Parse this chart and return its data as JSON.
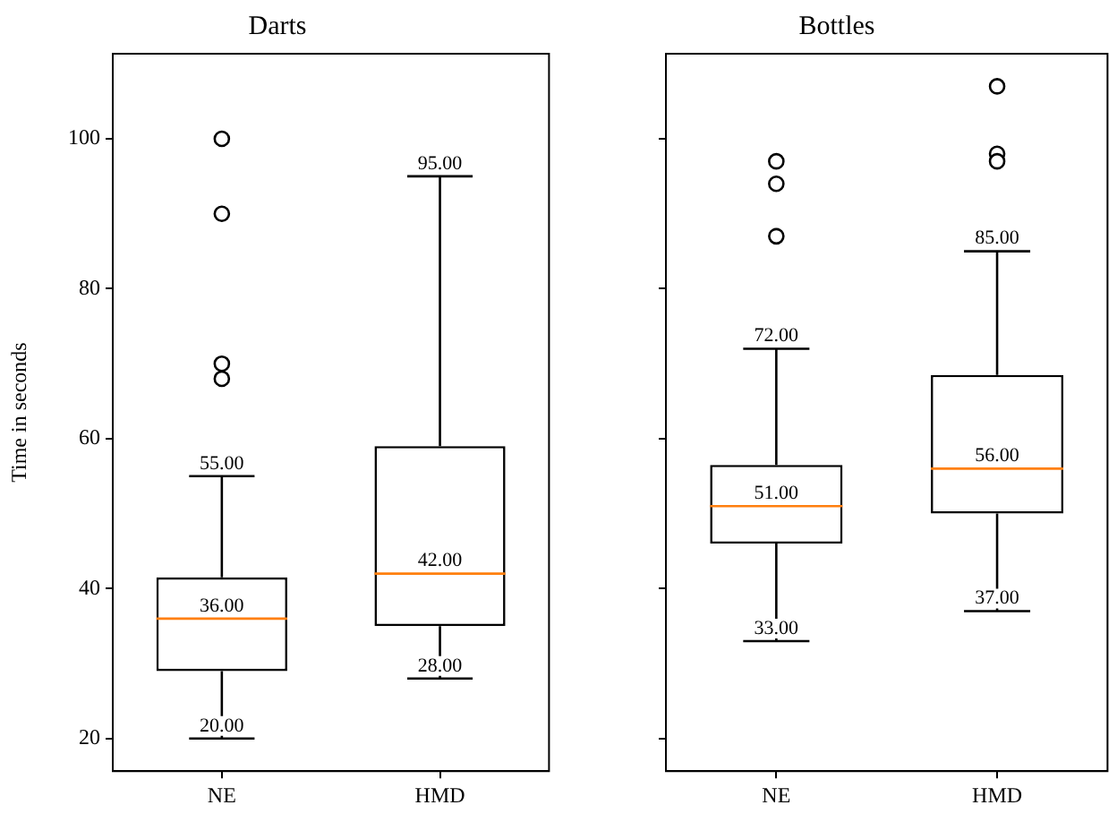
{
  "chart_data": [
    {
      "type": "box",
      "title": "Darts",
      "ylabel": "Time in seconds",
      "categories": [
        "NE",
        "HMD"
      ],
      "boxes": [
        {
          "low": 20,
          "q1": 29,
          "median": 36,
          "q3": 41.5,
          "high": 55,
          "outliers": [
            100,
            90,
            70,
            68
          ]
        },
        {
          "low": 28,
          "q1": 35,
          "median": 42,
          "q3": 59,
          "high": 95
        }
      ],
      "value_labels": [
        [
          "20.00",
          "36.00",
          "55.00"
        ],
        [
          "28.00",
          "42.00",
          "95.00"
        ]
      ],
      "ylim": [
        15.65,
        111.35
      ],
      "yticks": [
        20,
        40,
        60,
        80,
        100
      ],
      "grid": false
    },
    {
      "type": "box",
      "title": "Bottles",
      "categories": [
        "NE",
        "HMD"
      ],
      "boxes": [
        {
          "low": 33,
          "q1": 46,
          "median": 51,
          "q3": 56.5,
          "high": 72,
          "outliers": [
            97,
            94,
            87
          ]
        },
        {
          "low": 37,
          "q1": 50,
          "median": 56,
          "q3": 68.5,
          "high": 85,
          "outliers": [
            107,
            98,
            97
          ]
        }
      ],
      "value_labels": [
        [
          "33.00",
          "51.00",
          "72.00"
        ],
        [
          "37.00",
          "56.00",
          "85.00"
        ]
      ],
      "ylim": [
        15.65,
        111.35
      ],
      "yticks": [
        20,
        40,
        60,
        80,
        100
      ],
      "tick_labels": "x",
      "grid": false
    }
  ]
}
